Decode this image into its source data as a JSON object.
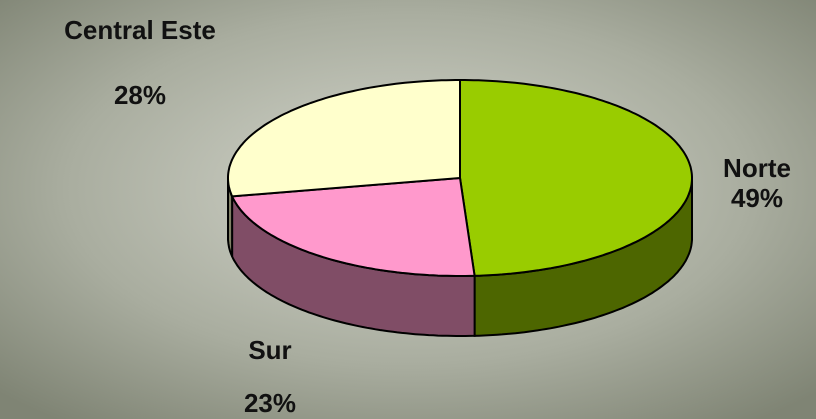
{
  "chart_data": {
    "type": "pie3d",
    "categories": [
      "Norte",
      "Sur",
      "Central Este"
    ],
    "values": [
      49,
      23,
      28
    ],
    "value_labels": [
      "49%",
      "23%",
      "28%"
    ],
    "colors": [
      "#99cc00",
      "#ff99cc",
      "#ffffcc"
    ],
    "side_colors": [
      "#4d6600",
      "#804d66",
      "#808066"
    ]
  }
}
